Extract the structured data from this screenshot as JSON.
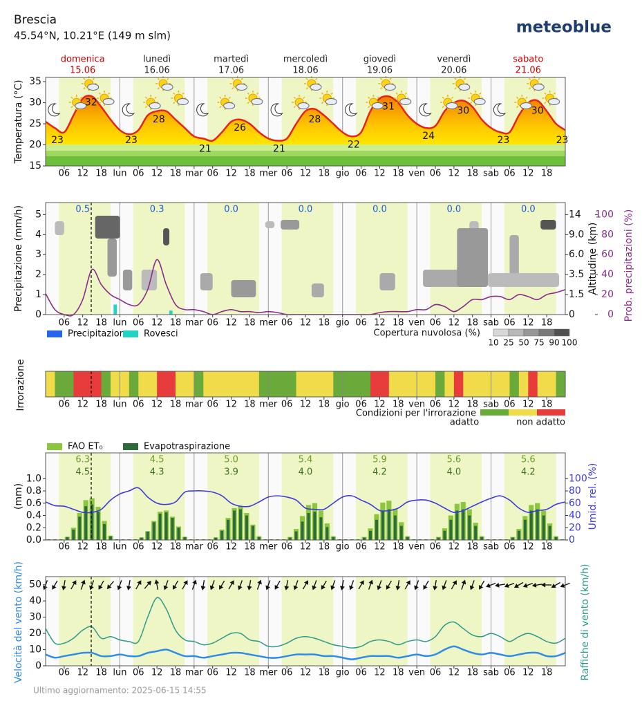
{
  "header": {
    "place": "Brescia",
    "coords": "45.54°N, 10.21°E (149 m slm)",
    "brand": "meteoblue",
    "footer": "Ultimo aggiornamento: 2025-06-15 14:55"
  },
  "days": [
    {
      "name": "domenica",
      "date": "15.06",
      "color": "#cc0000"
    },
    {
      "name": "lunedì",
      "date": "16.06",
      "color": "#222222"
    },
    {
      "name": "martedì",
      "date": "17.06",
      "color": "#222222"
    },
    {
      "name": "mercoledì",
      "date": "18.06",
      "color": "#222222"
    },
    {
      "name": "giovedì",
      "date": "19.06",
      "color": "#222222"
    },
    {
      "name": "venerdì",
      "date": "20.06",
      "color": "#222222"
    },
    {
      "name": "sabato",
      "date": "21.06",
      "color": "#cc0000"
    }
  ],
  "x_axis": {
    "labels": [
      "06",
      "12",
      "18",
      "lun",
      "06",
      "12",
      "18",
      "mar",
      "06",
      "12",
      "18",
      "mer",
      "06",
      "12",
      "18",
      "gio",
      "06",
      "12",
      "18",
      "ven",
      "06",
      "12",
      "18",
      "sab",
      "06",
      "12",
      "18"
    ]
  },
  "chart_data": [
    {
      "type": "area",
      "ylabel": "Temperatura (°C)",
      "ylim": [
        15,
        36
      ],
      "yticks": [
        15,
        20,
        25,
        30,
        35
      ],
      "color": "#e8231a",
      "values": [
        25.5,
        24,
        23,
        27,
        31,
        31.5,
        29,
        26,
        23.5,
        22.5,
        23.5,
        27,
        28,
        28,
        26,
        24,
        22,
        21.5,
        21,
        23,
        25.5,
        26,
        25,
        23,
        21.5,
        21,
        21.5,
        25,
        28,
        28.5,
        27,
        25,
        23,
        22,
        23,
        28,
        31,
        31.5,
        30,
        27,
        25,
        24,
        24.5,
        28,
        30,
        30.5,
        29,
        26,
        24,
        23,
        23,
        27,
        30,
        30.5,
        28,
        25,
        23.5
      ],
      "min_max_labels": [
        23,
        32,
        23,
        28,
        21,
        26,
        21,
        28,
        22,
        31,
        24,
        30,
        23,
        30,
        23
      ]
    },
    {
      "type": "bar",
      "ylabel": "Precipitazione (mm/h)",
      "ylim": [
        0,
        5.6
      ],
      "yticks": [
        0,
        1,
        2,
        3,
        4,
        5
      ],
      "y2label": "Altitudine (km)",
      "y2ticks": [
        0,
        1.5,
        3.5,
        {
          "value": 6,
          "label": "6.0"
        },
        {
          "value": 9,
          "label": "9.0"
        },
        14
      ],
      "y3label": "Prob. precipitazioni (%)",
      "y3lim": [
        0,
        112
      ],
      "y3ticks": [
        0,
        20,
        40,
        60,
        80,
        100
      ],
      "series": [
        {
          "name": "Precipitazione",
          "color": "#2563eb",
          "values": [
            0,
            0,
            0,
            0,
            0,
            0,
            0,
            0,
            0,
            0,
            0,
            0,
            0,
            0,
            0,
            0,
            0,
            0,
            0,
            0,
            0,
            0,
            0,
            0,
            0,
            0,
            0,
            0,
            0,
            0,
            0,
            0,
            0,
            0,
            0,
            0,
            0,
            0,
            0,
            0,
            0,
            0,
            0,
            0,
            0,
            0,
            0,
            0,
            0,
            0,
            0,
            0,
            0,
            0,
            0,
            0
          ]
        },
        {
          "name": "Rovesci",
          "color": "#22d3c5",
          "values": [
            0,
            0,
            0,
            0,
            0,
            0,
            0,
            0.5,
            0,
            0,
            0,
            0,
            0,
            0.2,
            0,
            0,
            0,
            0,
            0,
            0,
            0,
            0,
            0,
            0,
            0,
            0,
            0,
            0,
            0,
            0,
            0,
            0,
            0,
            0,
            0,
            0,
            0,
            0,
            0,
            0,
            0,
            0,
            0,
            0,
            0,
            0,
            0,
            0,
            0,
            0,
            0,
            0,
            0,
            0,
            0,
            0
          ]
        },
        {
          "color": "#8b2b8b",
          "axis": "y3",
          "values": [
            21,
            5,
            0,
            0,
            15,
            45,
            30,
            20,
            15,
            10,
            10,
            25,
            55,
            30,
            10,
            5,
            5,
            3,
            0,
            3,
            5,
            3,
            3,
            2,
            3,
            2,
            0,
            0,
            0,
            0,
            0,
            0,
            0,
            0,
            0,
            0,
            2,
            3,
            3,
            3,
            5,
            5,
            10,
            8,
            3,
            8,
            15,
            15,
            18,
            18,
            15,
            20,
            18,
            15,
            20,
            22,
            25
          ]
        }
      ],
      "daily_totals": [
        {
          "color": "#1a5ad8",
          "values": [
            0.5,
            0.3,
            0,
            0,
            0,
            0,
            0
          ],
          "value_labels": [
            "0.5",
            "0.3",
            "0.0",
            "0.0",
            "0.0",
            "0.0",
            "0.0"
          ]
        }
      ],
      "cloud_legend": {
        "title": "Copertura nuvolosa (%)",
        "ticks": [
          10,
          25,
          50,
          75,
          90,
          100
        ]
      }
    },
    {
      "type": "heatmap",
      "ylabel": "Irrorazione",
      "colors": [
        "#6aaa3a",
        "#f0dc4a",
        "#e83c3c"
      ],
      "values": [
        1,
        0,
        0,
        2,
        2,
        2,
        0,
        1,
        1,
        0,
        1,
        1,
        2,
        2,
        1,
        1,
        0,
        1,
        1,
        1,
        1,
        1,
        1,
        0,
        0,
        0,
        0,
        1,
        1,
        1,
        1,
        0,
        0,
        0,
        0,
        2,
        2,
        1,
        1,
        1,
        1,
        1,
        0,
        1,
        2,
        1,
        1,
        1,
        1,
        1,
        0,
        1,
        2,
        1,
        1,
        0
      ],
      "legend": {
        "title": "Condizioni per l'irrorazione",
        "labels": [
          "adatto",
          "non adatto"
        ]
      }
    },
    {
      "type": "bar",
      "ylabel": "(mm)",
      "ylim": [
        0,
        1.42
      ],
      "yticks": [
        {
          "value": 0,
          "label": "0.0"
        },
        {
          "value": 0.2,
          "label": "0.2"
        },
        {
          "value": 0.4,
          "label": "0.4"
        },
        {
          "value": 0.6,
          "label": "0.6"
        },
        {
          "value": 0.8,
          "label": "0.8"
        },
        {
          "value": 1,
          "label": "1.0"
        }
      ],
      "y2label": "Umid. rel. (%)",
      "y2lim": [
        0,
        142
      ],
      "y2ticks": [
        0,
        20,
        40,
        60,
        80,
        100
      ],
      "series": [
        {
          "name": "FAO ET₀",
          "color": "#8cc63f",
          "values": [
            0.01,
            0.01,
            0.01,
            0.05,
            0.2,
            0.44,
            0.65,
            0.68,
            0.54,
            0.31,
            0.07,
            0.01,
            0.01,
            0.01,
            0.01,
            0.04,
            0.14,
            0.31,
            0.46,
            0.48,
            0.38,
            0.22,
            0.05,
            0.01,
            0.01,
            0.01,
            0.01,
            0.04,
            0.17,
            0.36,
            0.52,
            0.55,
            0.44,
            0.25,
            0.06,
            0.01,
            0.01,
            0.01,
            0.01,
            0.05,
            0.18,
            0.39,
            0.57,
            0.6,
            0.48,
            0.27,
            0.06,
            0.01,
            0.01,
            0.01,
            0.01,
            0.05,
            0.19,
            0.42,
            0.61,
            0.64,
            0.51,
            0.29,
            0.06,
            0.01,
            0.01,
            0.01,
            0.01,
            0.05,
            0.19,
            0.4,
            0.59,
            0.62,
            0.5,
            0.28,
            0.06,
            0.01,
            0.01,
            0.01,
            0.01,
            0.05,
            0.18,
            0.39,
            0.57,
            0.6,
            0.48,
            0.27,
            0.06,
            0.01
          ]
        },
        {
          "name": "Evapotraspirazione",
          "color": "#2e6b3a",
          "values": [
            0.01,
            0.01,
            0.01,
            0.05,
            0.17,
            0.38,
            0.55,
            0.58,
            0.46,
            0.26,
            0.06,
            0.01,
            0.01,
            0.01,
            0.01,
            0.04,
            0.14,
            0.29,
            0.43,
            0.45,
            0.36,
            0.2,
            0.05,
            0.01,
            0.01,
            0.01,
            0.01,
            0.04,
            0.15,
            0.33,
            0.48,
            0.5,
            0.4,
            0.23,
            0.05,
            0.01,
            0.01,
            0.01,
            0.01,
            0.04,
            0.14,
            0.3,
            0.44,
            0.46,
            0.37,
            0.21,
            0.05,
            0.01,
            0.01,
            0.01,
            0.01,
            0.04,
            0.15,
            0.33,
            0.48,
            0.5,
            0.4,
            0.23,
            0.05,
            0.01,
            0.01,
            0.01,
            0.01,
            0.04,
            0.15,
            0.33,
            0.48,
            0.5,
            0.4,
            0.23,
            0.05,
            0.01,
            0.01,
            0.01,
            0.01,
            0.04,
            0.15,
            0.33,
            0.48,
            0.5,
            0.4,
            0.23,
            0.05,
            0.01
          ]
        },
        {
          "color": "#3a3ae0",
          "axis": "y2",
          "values": [
            62,
            56,
            55,
            50,
            45,
            45,
            50,
            65,
            75,
            80,
            85,
            70,
            60,
            58,
            62,
            78,
            80,
            80,
            78,
            72,
            60,
            55,
            55,
            62,
            70,
            72,
            70,
            65,
            52,
            50,
            50,
            60,
            70,
            72,
            65,
            58,
            48,
            48,
            52,
            62,
            65,
            65,
            60,
            52,
            45,
            48,
            55,
            62,
            68,
            72,
            65,
            52,
            45,
            48,
            50,
            58,
            62
          ]
        }
      ],
      "daily_totals": [
        {
          "color": "#6a9a2a",
          "values": [
            6.3,
            4.5,
            5,
            5.4,
            5.9,
            5.6,
            5.6
          ],
          "value_labels": [
            "6.3",
            "4.5",
            "5.0",
            "5.4",
            "5.9",
            "5.6",
            "5.6"
          ]
        },
        {
          "color": "#3e6e2a",
          "values": [
            4.5,
            4.3,
            3.9,
            4,
            4.2,
            4,
            4.2
          ],
          "value_labels": [
            "4.5",
            "4.3",
            "3.9",
            "4.0",
            "4.2",
            "4.0",
            "4.2"
          ]
        }
      ]
    },
    {
      "type": "line",
      "ylabel": "Velocità del vento (km/h)",
      "y2label": "Raffiche di vento (km/h)",
      "ylim": [
        0,
        55
      ],
      "yticks": [
        0,
        10,
        20,
        30,
        40,
        50
      ],
      "series": [
        {
          "color": "#2e8be8",
          "values": [
            7,
            5,
            6,
            7,
            8,
            8,
            6,
            6,
            7,
            6,
            6,
            8,
            9,
            10,
            8,
            6,
            6,
            5,
            6,
            7,
            8,
            8,
            7,
            6,
            5,
            5,
            6,
            7,
            7,
            7,
            6,
            6,
            5,
            4,
            5,
            6,
            6,
            6,
            5,
            6,
            7,
            6,
            7,
            10,
            12,
            10,
            8,
            7,
            8,
            7,
            6,
            7,
            8,
            8,
            6,
            6,
            8
          ]
        },
        {
          "color": "#2a9a8a",
          "values": [
            23,
            14,
            14,
            17,
            22,
            24,
            17,
            18,
            16,
            15,
            15,
            30,
            42,
            35,
            22,
            16,
            15,
            13,
            14,
            17,
            20,
            20,
            16,
            15,
            12,
            12,
            14,
            17,
            18,
            17,
            15,
            13,
            12,
            11,
            12,
            15,
            16,
            15,
            13,
            15,
            16,
            15,
            18,
            25,
            27,
            23,
            19,
            18,
            20,
            18,
            15,
            18,
            20,
            18,
            15,
            14,
            17
          ]
        }
      ],
      "wind_direction": [
        200,
        210,
        190,
        30,
        20,
        200,
        210,
        220,
        200,
        190,
        30,
        40,
        350,
        200,
        210,
        30,
        20,
        190,
        200,
        210,
        30,
        200,
        190,
        20,
        200,
        210,
        190,
        200,
        30,
        200,
        210,
        200,
        190,
        200,
        30,
        20,
        200,
        210,
        190,
        30,
        200,
        210,
        190,
        200,
        30,
        20,
        200,
        210,
        250,
        260,
        250,
        240,
        250,
        260,
        270,
        240,
        250
      ]
    }
  ]
}
